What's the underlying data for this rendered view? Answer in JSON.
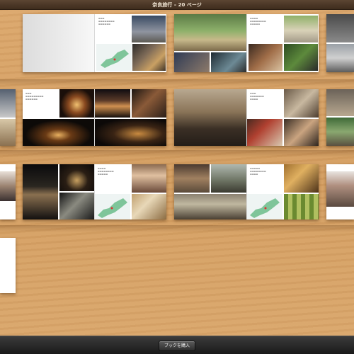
{
  "header": {
    "title": "奈良旅行 – 20 ページ"
  },
  "footer": {
    "buy_label": "ブックを購入"
  },
  "colors": {
    "wood": "#d6a064",
    "title_bar": "#3e2c1d",
    "bottom_bar": "#1f1f1f"
  },
  "icons": {
    "map": "map-thumbnail"
  }
}
